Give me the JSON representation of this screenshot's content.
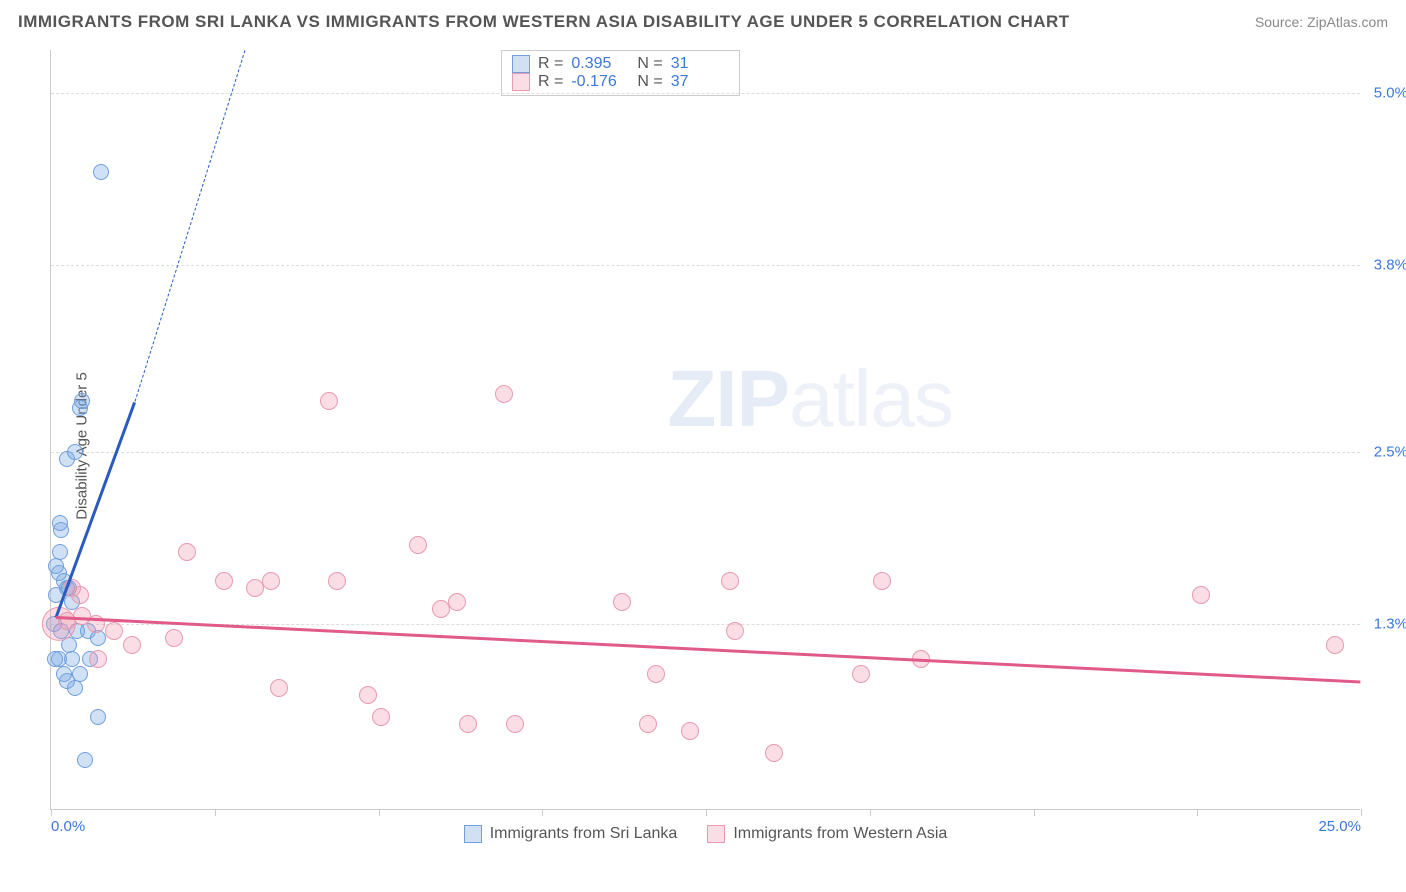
{
  "title": "IMMIGRANTS FROM SRI LANKA VS IMMIGRANTS FROM WESTERN ASIA DISABILITY AGE UNDER 5 CORRELATION CHART",
  "source_label": "Source:",
  "source_site": "ZipAtlas.com",
  "ylabel": "Disability Age Under 5",
  "watermark_bold": "ZIP",
  "watermark_rest": "atlas",
  "chart": {
    "type": "scatter",
    "xlim": [
      0,
      25
    ],
    "ylim": [
      0,
      5.3
    ],
    "xticks": [
      0,
      3.125,
      6.25,
      9.375,
      12.5,
      15.625,
      18.75,
      21.875,
      25
    ],
    "xtick_labels": {
      "0": "0.0%",
      "25": "25.0%"
    },
    "yticks": [
      1.3,
      2.5,
      3.8,
      5.0
    ],
    "ytick_labels": [
      "1.3%",
      "2.5%",
      "3.8%",
      "5.0%"
    ],
    "grid_color": "#dddddd",
    "axis_color": "#cccccc",
    "background_color": "#ffffff"
  },
  "series": [
    {
      "key": "sri_lanka",
      "label": "Immigrants from Sri Lanka",
      "color_fill": "rgba(120,165,225,0.35)",
      "color_stroke": "#6f9fde",
      "trend_color": "#2b5bbf",
      "R": "0.395",
      "N": "31",
      "marker_radius": 8,
      "trend": {
        "x1": 0.1,
        "y1": 1.35,
        "x2": 1.6,
        "y2": 2.85,
        "x2_ext": 3.7,
        "y2_ext": 5.3
      },
      "points": [
        [
          0.05,
          1.3
        ],
        [
          0.1,
          1.5
        ],
        [
          0.15,
          1.65
        ],
        [
          0.1,
          1.7
        ],
        [
          0.2,
          1.95
        ],
        [
          0.18,
          2.0
        ],
        [
          0.25,
          1.6
        ],
        [
          0.3,
          1.55
        ],
        [
          0.35,
          1.55
        ],
        [
          0.4,
          1.45
        ],
        [
          0.3,
          2.45
        ],
        [
          0.45,
          2.5
        ],
        [
          0.55,
          2.8
        ],
        [
          0.6,
          2.85
        ],
        [
          0.95,
          4.45
        ],
        [
          0.5,
          1.25
        ],
        [
          0.7,
          1.25
        ],
        [
          0.9,
          1.2
        ],
        [
          0.35,
          1.15
        ],
        [
          0.4,
          1.05
        ],
        [
          0.55,
          0.95
        ],
        [
          0.75,
          1.05
        ],
        [
          0.3,
          0.9
        ],
        [
          0.15,
          1.05
        ],
        [
          0.2,
          1.25
        ],
        [
          0.25,
          0.95
        ],
        [
          0.45,
          0.85
        ],
        [
          0.9,
          0.65
        ],
        [
          0.65,
          0.35
        ],
        [
          0.18,
          1.8
        ],
        [
          0.08,
          1.05
        ]
      ]
    },
    {
      "key": "western_asia",
      "label": "Immigrants from Western Asia",
      "color_fill": "rgba(240,150,175,0.32)",
      "color_stroke": "#e99ab0",
      "trend_color": "#e05a8a",
      "R": "-0.176",
      "N": "37",
      "marker_radius": 9,
      "trend": {
        "x1": 0.1,
        "y1": 1.35,
        "x2": 25,
        "y2": 0.9
      },
      "points": [
        [
          0.4,
          1.55
        ],
        [
          0.55,
          1.5
        ],
        [
          0.6,
          1.35
        ],
        [
          0.85,
          1.3
        ],
        [
          1.2,
          1.25
        ],
        [
          1.55,
          1.15
        ],
        [
          2.35,
          1.2
        ],
        [
          2.6,
          1.8
        ],
        [
          3.3,
          1.6
        ],
        [
          3.9,
          1.55
        ],
        [
          4.2,
          1.6
        ],
        [
          4.35,
          0.85
        ],
        [
          5.3,
          2.85
        ],
        [
          5.45,
          1.6
        ],
        [
          6.05,
          0.8
        ],
        [
          6.3,
          0.65
        ],
        [
          7.0,
          1.85
        ],
        [
          7.45,
          1.4
        ],
        [
          7.95,
          0.6
        ],
        [
          7.75,
          1.45
        ],
        [
          8.65,
          2.9
        ],
        [
          8.85,
          0.6
        ],
        [
          10.9,
          1.45
        ],
        [
          11.55,
          0.95
        ],
        [
          11.4,
          0.6
        ],
        [
          12.2,
          0.55
        ],
        [
          12.95,
          1.6
        ],
        [
          13.05,
          1.25
        ],
        [
          13.8,
          0.4
        ],
        [
          15.45,
          0.95
        ],
        [
          15.85,
          1.6
        ],
        [
          16.6,
          1.05
        ],
        [
          21.95,
          1.5
        ],
        [
          24.5,
          1.15
        ],
        [
          0.15,
          1.3,
          "large"
        ],
        [
          0.3,
          1.32
        ],
        [
          0.9,
          1.05
        ]
      ]
    }
  ],
  "legend_top_labels": {
    "R": "R  =",
    "N": "N  ="
  },
  "colors": {
    "tick_text": "#3b78d8",
    "label_text": "#555555",
    "source_text": "#888888"
  }
}
